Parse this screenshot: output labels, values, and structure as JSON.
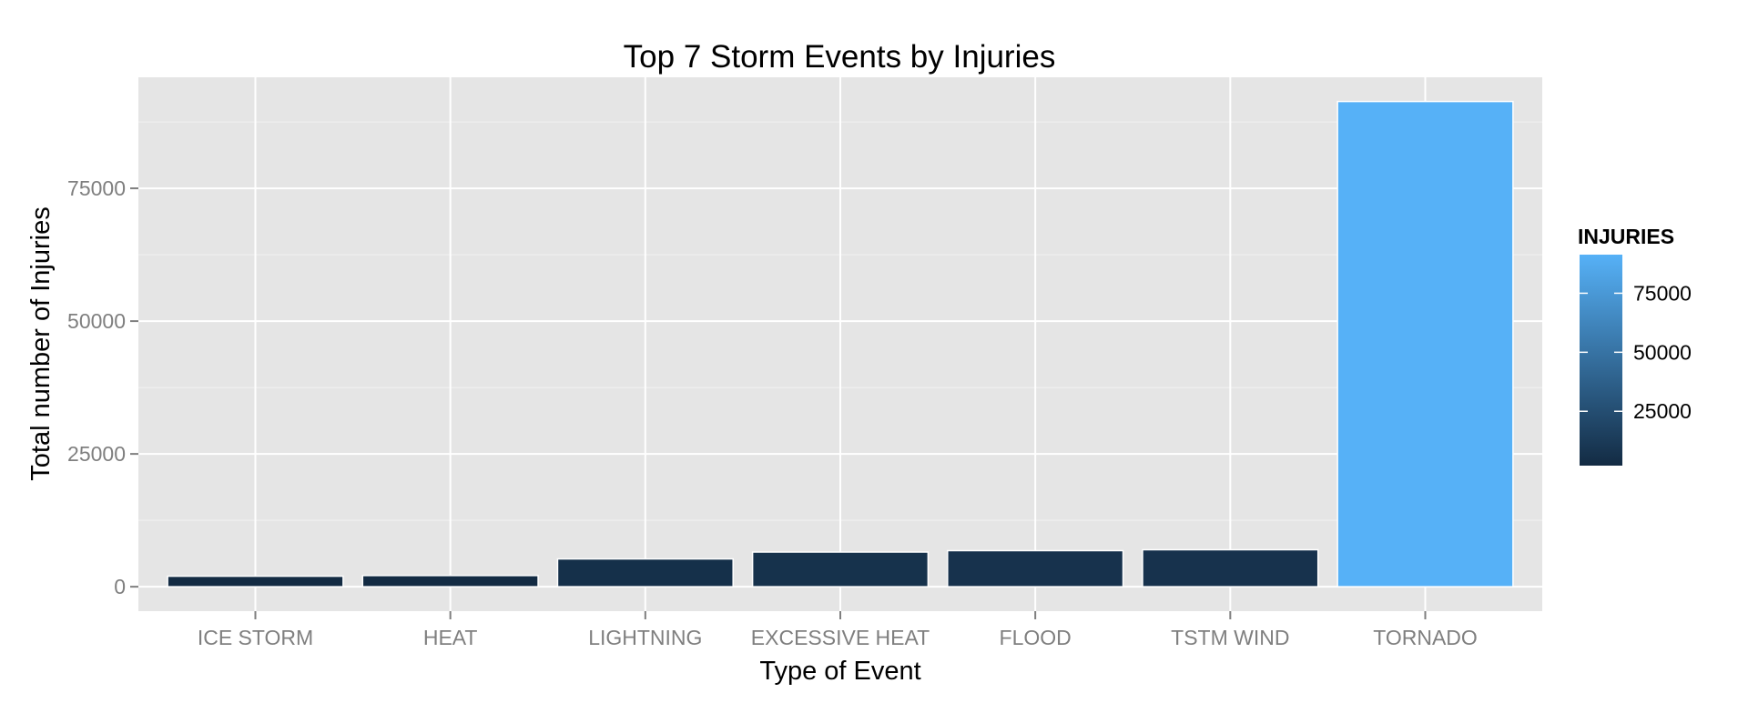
{
  "chart_data": {
    "type": "bar",
    "title": "Top 7 Storm Events by Injuries",
    "xlabel": "Type of Event",
    "ylabel": "Total number of Injuries",
    "categories": [
      "ICE STORM",
      "HEAT",
      "LIGHTNING",
      "EXCESSIVE HEAT",
      "FLOOD",
      "TSTM WIND",
      "TORNADO"
    ],
    "values": [
      1975,
      2100,
      5230,
      6525,
      6789,
      6957,
      91346
    ],
    "ylim": [
      -4600,
      95900
    ],
    "yticks": [
      0,
      25000,
      50000,
      75000
    ],
    "grid": true,
    "legend": {
      "title": "INJURIES",
      "position": "right",
      "ticks": [
        25000,
        50000,
        75000
      ],
      "range": [
        1975,
        91346
      ],
      "color_low": "#132B43",
      "color_high": "#56B1F7"
    },
    "colors": {
      "panel": "#E5E5E5",
      "grid_major": "#FFFFFF",
      "grid_minor": "#F2F2F2",
      "tick_text": "#7F7F7F"
    }
  }
}
